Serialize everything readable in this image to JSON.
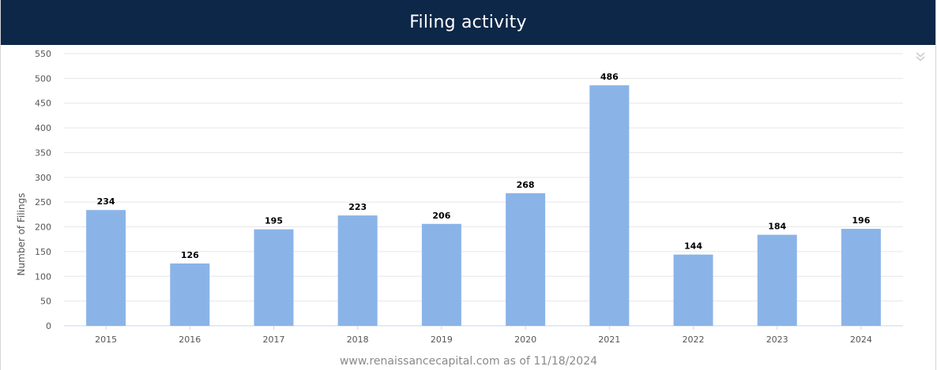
{
  "header": {
    "title": "Filing activity"
  },
  "footer": {
    "credit": "www.renaissancecapital.com as of 11/18/2024"
  },
  "menu": {
    "icon": "double-chevron-down-icon"
  },
  "colors": {
    "header_bg": "#0d2748",
    "bar": "#8ab4e8",
    "grid": "#e6e6e6"
  },
  "chart_data": {
    "type": "bar",
    "title": "Filing activity",
    "categories": [
      "2015",
      "2016",
      "2017",
      "2018",
      "2019",
      "2020",
      "2021",
      "2022",
      "2023",
      "2024"
    ],
    "values": [
      234,
      126,
      195,
      223,
      206,
      268,
      486,
      144,
      184,
      196
    ],
    "ylabel": "Number of Filings",
    "xlabel": "",
    "ylim": [
      0,
      550
    ],
    "yticks": [
      0,
      50,
      100,
      150,
      200,
      250,
      300,
      350,
      400,
      450,
      500,
      550
    ],
    "grid": true,
    "data_labels": true,
    "legend": false
  }
}
